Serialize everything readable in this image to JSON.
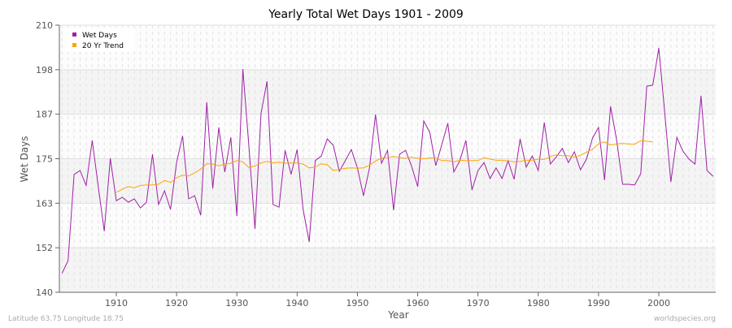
{
  "chart_data": {
    "type": "line",
    "title": "Yearly Total Wet Days 1901 - 2009",
    "xlabel": "Year",
    "ylabel": "Wet Days",
    "xlim": [
      1901,
      2009
    ],
    "ylim": [
      140,
      210
    ],
    "xticks": [
      1910,
      1920,
      1930,
      1940,
      1950,
      1960,
      1970,
      1980,
      1990,
      2000
    ],
    "yticks": [
      140,
      152,
      163,
      175,
      187,
      198,
      210
    ],
    "grid": true,
    "legend_placement": "top-left",
    "series": [
      {
        "name": "Wet Days",
        "color": "#a020a8",
        "x_start": 1901,
        "values": [
          145,
          148.3,
          170.9,
          171.9,
          168,
          179.8,
          167.7,
          156,
          175.1,
          164,
          164.9,
          163.6,
          164.5,
          162.1,
          163.6,
          176.2,
          163,
          166.6,
          161.7,
          174,
          181,
          164.5,
          165.3,
          160.2,
          189.8,
          167.2,
          183.2,
          171.5,
          180.6,
          160,
          198.5,
          178.3,
          156.6,
          186.8,
          195.3,
          163,
          162.3,
          177.2,
          170.9,
          177.4,
          161.7,
          153.2,
          174.5,
          175.7,
          180.2,
          178.5,
          171.7,
          174.5,
          177.4,
          172.6,
          165.3,
          172.6,
          186.6,
          173.8,
          177.2,
          161.5,
          176.2,
          177.2,
          173,
          167.7,
          184.9,
          181.9,
          173.2,
          178.7,
          184.3,
          171.5,
          174.5,
          179.8,
          166.8,
          171.9,
          174,
          169.8,
          172.6,
          169.8,
          174.5,
          169.6,
          180.2,
          172.8,
          175.7,
          171.9,
          184.5,
          173.6,
          175.5,
          177.7,
          174,
          176.8,
          172.1,
          174.9,
          180.4,
          183.2,
          169.4,
          188.7,
          180,
          168.3,
          168.3,
          168.1,
          171.1,
          194,
          194.3,
          204,
          186.8,
          168.9,
          180.6,
          177,
          174.9,
          173.6,
          191.5,
          171.9,
          170.4
        ]
      },
      {
        "name": "20 Yr Trend",
        "color": "#ffa500",
        "x_start": 1910,
        "values": [
          166.2,
          167,
          167.7,
          167.4,
          168,
          168.1,
          168.1,
          168.3,
          169.3,
          168.8,
          170,
          170.7,
          170.5,
          171.3,
          172.3,
          173.7,
          173.6,
          173.1,
          173.6,
          173.8,
          174.5,
          174.2,
          172.7,
          173.1,
          173.9,
          174.3,
          173.9,
          174.1,
          173.8,
          173.9,
          173.9,
          173.6,
          172.6,
          172.8,
          173.7,
          173.4,
          171.9,
          172.2,
          172.5,
          172.6,
          172.5,
          172.6,
          173.3,
          174.4,
          175.2,
          175.3,
          175.6,
          175.3,
          175.1,
          175.4,
          175.1,
          175,
          175.2,
          175.2,
          174.5,
          174.5,
          174.2,
          174.6,
          174.5,
          174.5,
          174.5,
          175.3,
          174.9,
          174.6,
          174.6,
          174.4,
          174.2,
          174.3,
          174.6,
          174.6,
          174.9,
          174.8,
          175.6,
          176,
          175.8,
          175.8,
          175.4,
          175.9,
          176.7,
          177.5,
          178.9,
          179.4,
          178.6,
          178.9,
          179,
          178.9,
          178.8,
          179.7,
          179.6,
          179.4
        ]
      }
    ]
  },
  "footer": {
    "location": "Latitude 63.75 Longitude 18.75",
    "source": "worldspecies.org"
  }
}
